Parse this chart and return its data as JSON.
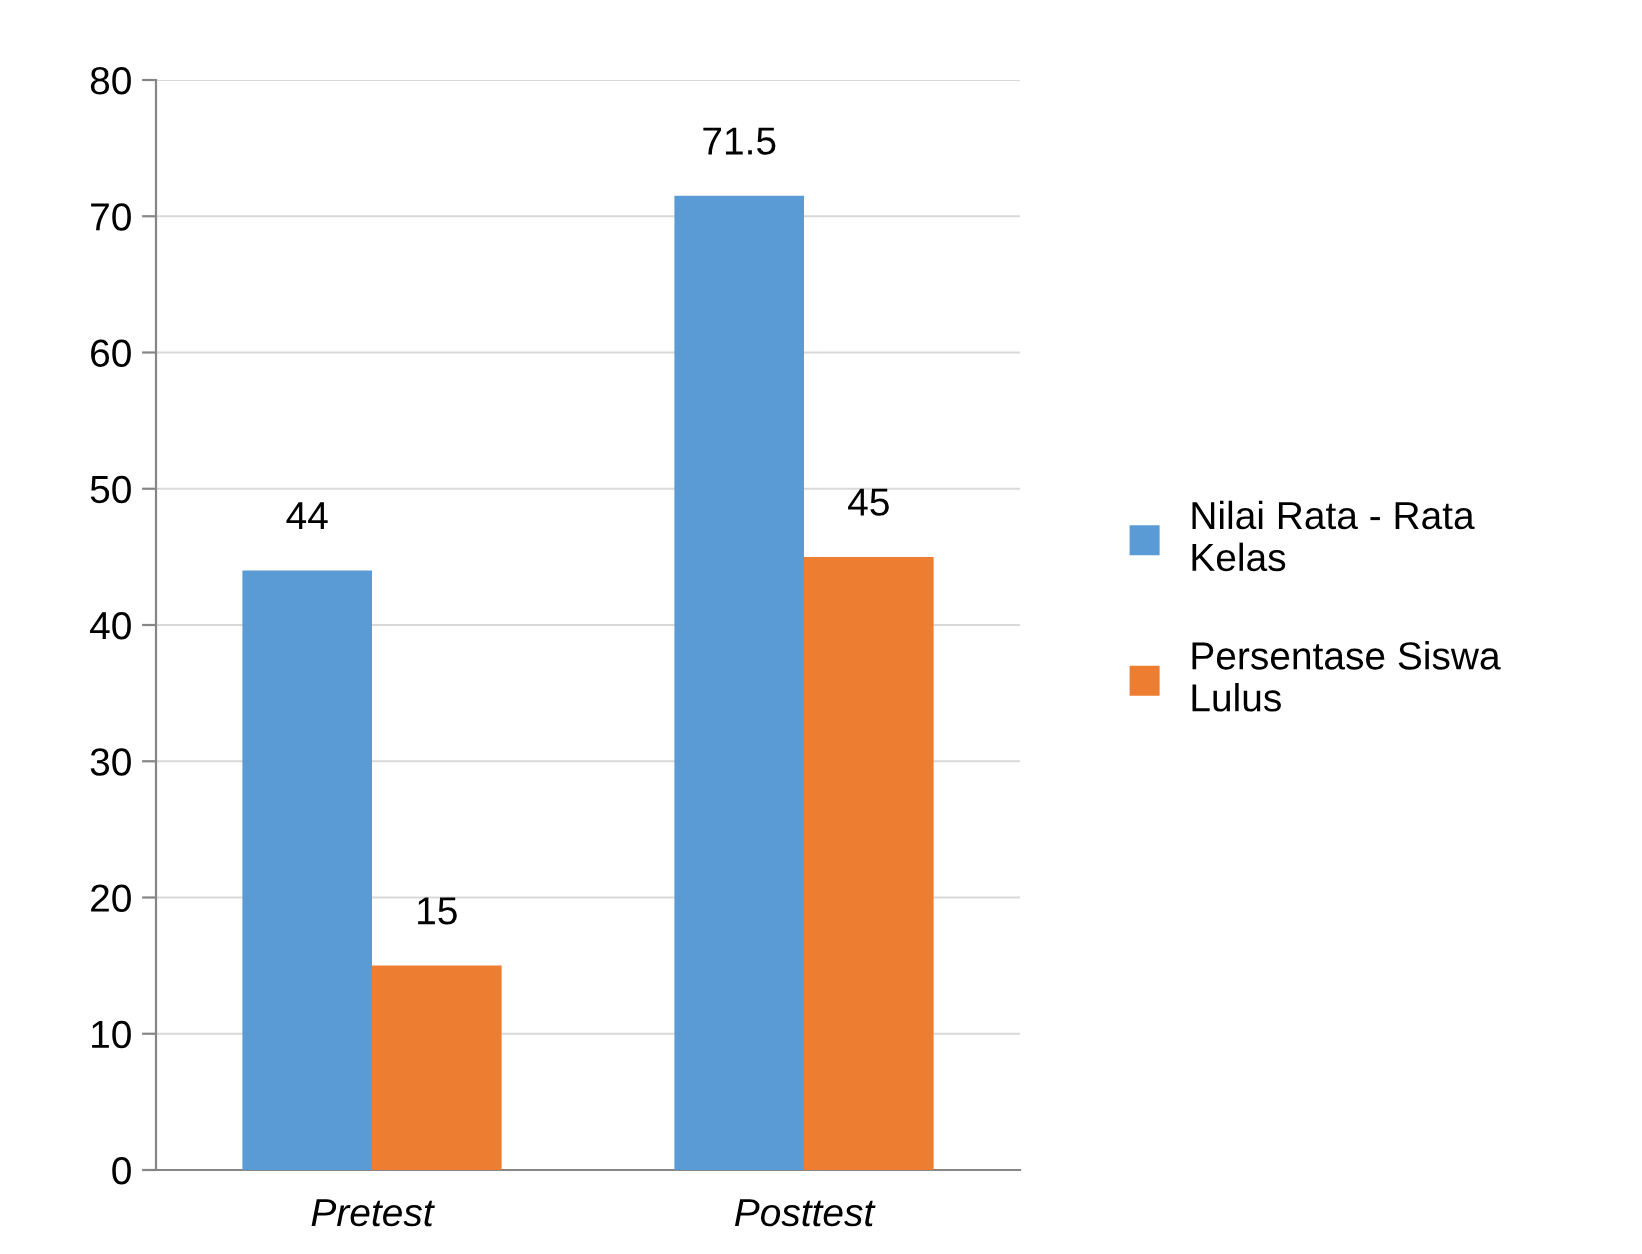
{
  "chart_data": {
    "type": "bar",
    "categories": [
      "Pretest",
      "Posttest"
    ],
    "series": [
      {
        "name": "Nilai Rata - Rata Kelas",
        "color": "#5b9bd5",
        "values": [
          44,
          71.5
        ]
      },
      {
        "name": "Persentase Siswa Lulus",
        "color": "#ed7d31",
        "values": [
          15,
          45
        ]
      }
    ],
    "ylim": [
      0,
      80
    ],
    "yticks": [
      0,
      10,
      20,
      30,
      40,
      50,
      60,
      70,
      80
    ],
    "grid": "y",
    "legend": "right",
    "data_labels": true
  }
}
